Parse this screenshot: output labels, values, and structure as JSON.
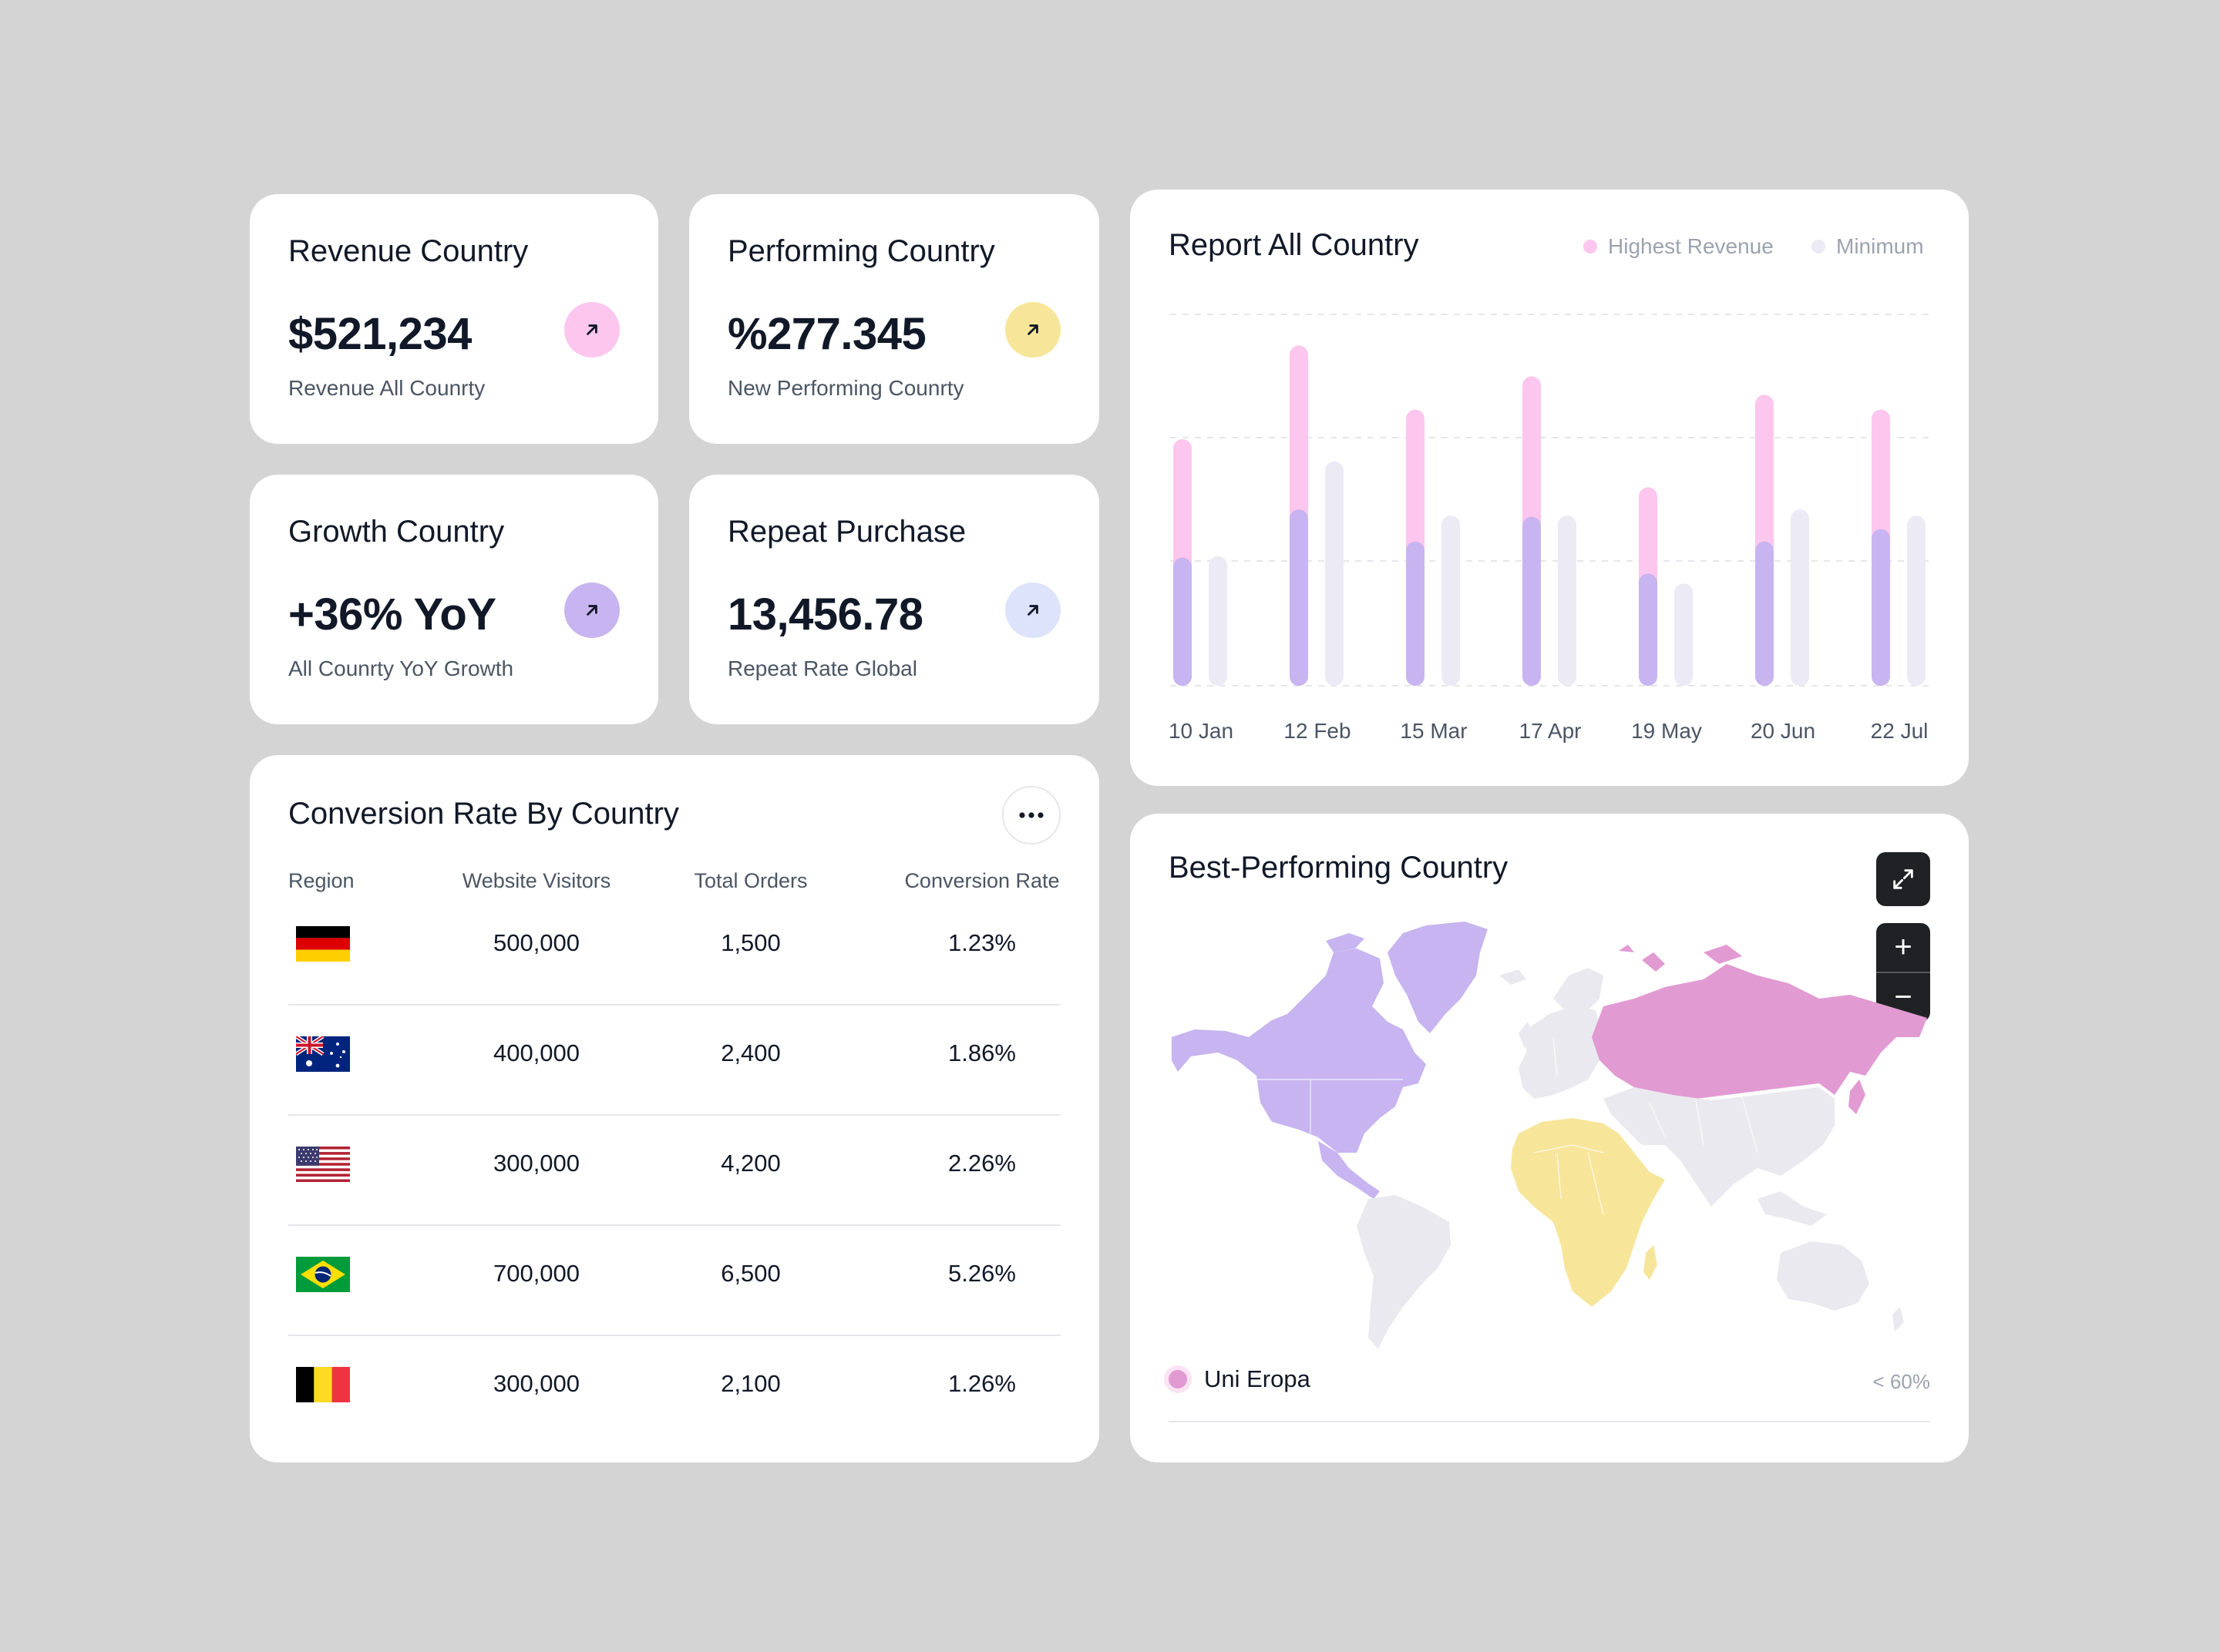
{
  "stats": [
    {
      "title": "Revenue Country",
      "value": "$521,234",
      "subtitle": "Revenue All Counrty",
      "accent": "#fdc6ee"
    },
    {
      "title": "Performing Country",
      "value": "%277.345",
      "subtitle": "New Performing Counrty",
      "accent": "#f7e59a"
    },
    {
      "title": "Growth Country",
      "value": "+36% YoY",
      "subtitle": "All Counrty YoY Growth",
      "accent": "#c7b4f0"
    },
    {
      "title": "Repeat Purchase",
      "value": "13,456.78",
      "subtitle": "Repeat Rate Global",
      "accent": "#dde3fb"
    }
  ],
  "conversion": {
    "title": "Conversion Rate By Country",
    "headers": [
      "Region",
      "Website Visitors",
      "Total Orders",
      "Conversion Rate"
    ],
    "rows": [
      {
        "flag": "germany-flag",
        "visitors": "500,000",
        "orders": "1,500",
        "rate": "1.23%"
      },
      {
        "flag": "australia-flag",
        "visitors": "400,000",
        "orders": "2,400",
        "rate": "1.86%"
      },
      {
        "flag": "usa-flag",
        "visitors": "300,000",
        "orders": "4,200",
        "rate": "2.26%"
      },
      {
        "flag": "brazil-flag",
        "visitors": "700,000",
        "orders": "6,500",
        "rate": "5.26%"
      },
      {
        "flag": "belgium-flag",
        "visitors": "300,000",
        "orders": "2,100",
        "rate": "1.26%"
      }
    ]
  },
  "report": {
    "title": "Report All Country",
    "legend": [
      {
        "label": "Highest Revenue",
        "color": "#fdc6ee"
      },
      {
        "label": "Minimum",
        "color": "#ebeaf5"
      }
    ]
  },
  "chart_data": {
    "type": "bar",
    "categories": [
      "10 Jan",
      "12 Feb",
      "15 Mar",
      "17 Apr",
      "19 May",
      "20 Jun",
      "22 Jul"
    ],
    "series": [
      {
        "name": "Highest Revenue",
        "values": [
          200,
          276,
          224,
          251,
          161,
          236,
          224
        ],
        "inner": [
          104,
          143,
          117,
          137,
          91,
          117,
          127
        ],
        "color": "#fdc6ee",
        "inner_color": "#c7b4f0"
      },
      {
        "name": "Minimum",
        "values": [
          105,
          182,
          138,
          138,
          83,
          143,
          138
        ],
        "color": "#ebeaf5"
      }
    ],
    "ylim": [
      0,
      300
    ],
    "grid": true,
    "legend_position": "top-right"
  },
  "map": {
    "title": "Best-Performing Country",
    "legend_label": "Uni Eropa",
    "legend_color": "#e29ad2",
    "threshold": "< 60%",
    "colors": {
      "north_america": "#c7b4f0",
      "russia": "#e29ad2",
      "africa": "#f7e59a",
      "other": "#e9e9ef"
    },
    "zoom_in_label": "+",
    "zoom_out_label": "−"
  }
}
